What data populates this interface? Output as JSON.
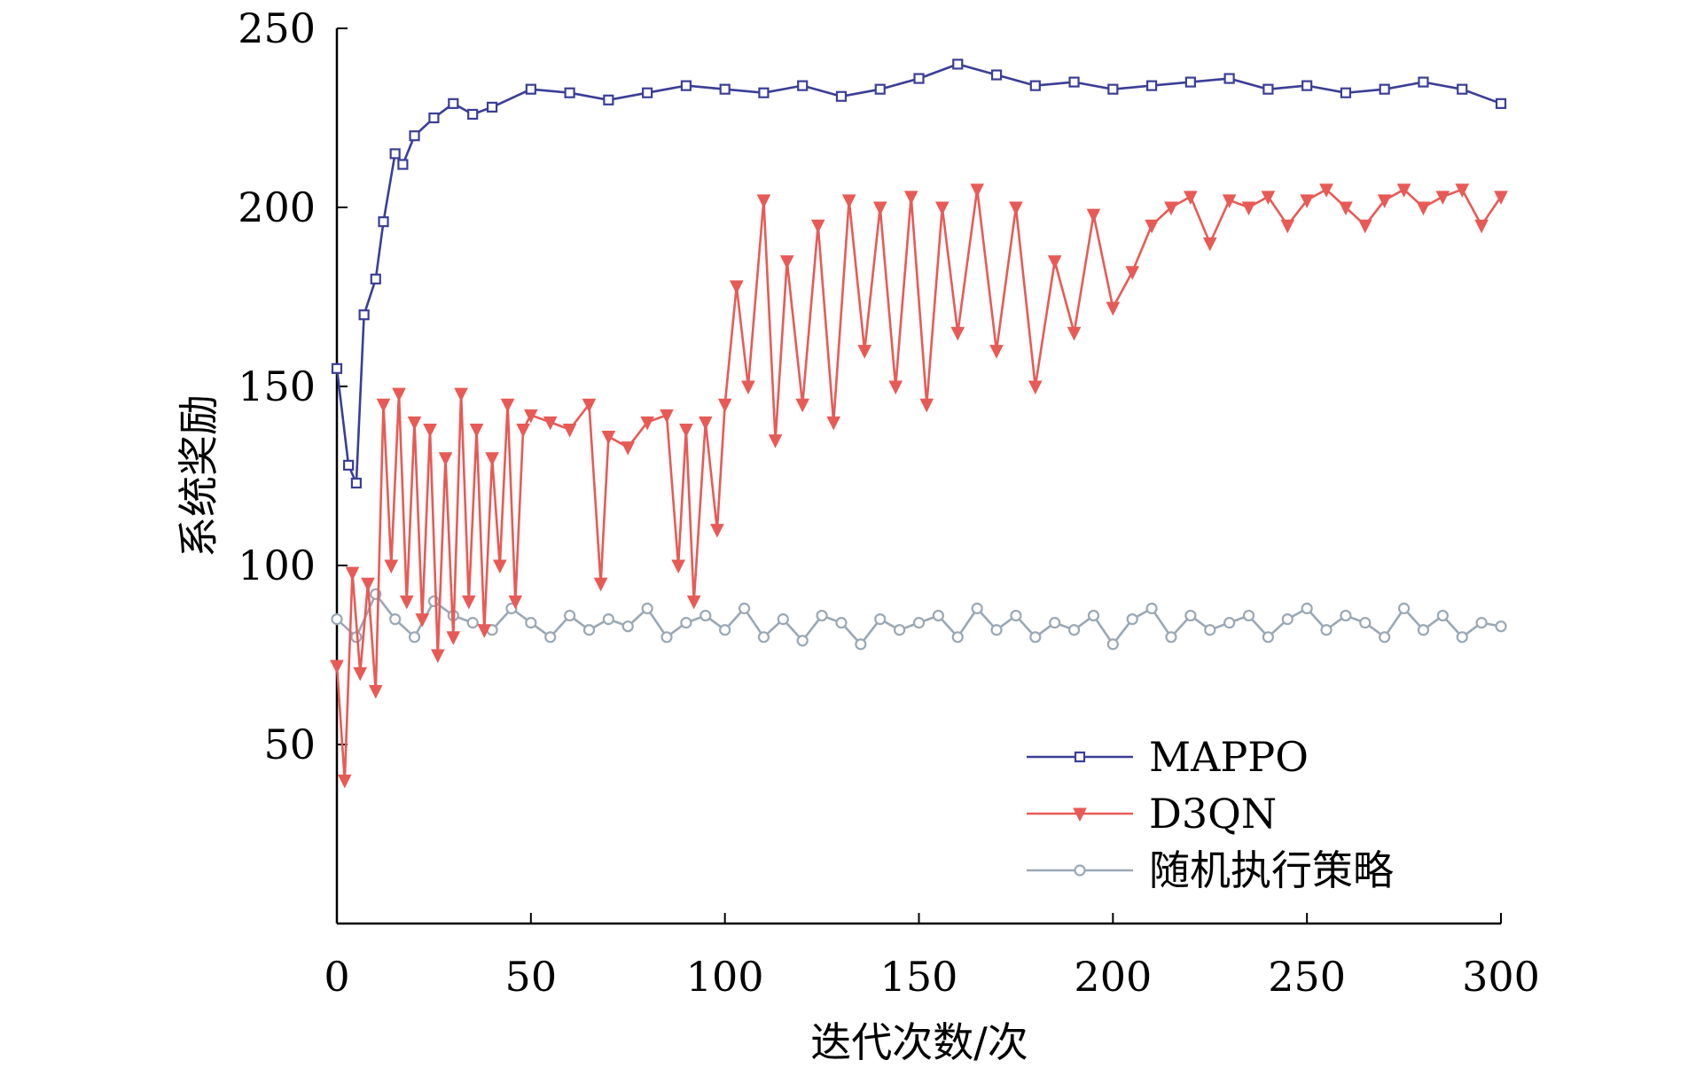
{
  "chart_data": {
    "type": "line",
    "xlabel": "迭代次数/次",
    "ylabel": "系统奖励",
    "xlim": [
      0,
      300
    ],
    "ylim": [
      0,
      250
    ],
    "xticks": [
      0,
      50,
      100,
      150,
      200,
      250,
      300
    ],
    "yticks": [
      50,
      100,
      150,
      200,
      250
    ],
    "grid": false,
    "legend_position": "bottom-right",
    "series": [
      {
        "name": "MAPPO",
        "color": "#3a3e96",
        "marker": "square",
        "x": [
          0,
          3,
          5,
          7,
          10,
          12,
          15,
          17,
          20,
          25,
          30,
          35,
          40,
          50,
          60,
          70,
          80,
          90,
          100,
          110,
          120,
          130,
          140,
          150,
          160,
          170,
          180,
          190,
          200,
          210,
          220,
          230,
          240,
          250,
          260,
          270,
          280,
          290,
          300
        ],
        "y": [
          155,
          128,
          123,
          170,
          180,
          196,
          215,
          212,
          220,
          225,
          229,
          226,
          228,
          233,
          232,
          230,
          232,
          234,
          233,
          232,
          234,
          231,
          233,
          236,
          240,
          237,
          234,
          235,
          233,
          234,
          235,
          236,
          233,
          234,
          232,
          233,
          235,
          233,
          229
        ]
      },
      {
        "name": "D3QN",
        "color": "#e85a56",
        "marker": "triangle-down",
        "x": [
          0,
          2,
          4,
          6,
          8,
          10,
          12,
          14,
          16,
          18,
          20,
          22,
          24,
          26,
          28,
          30,
          32,
          34,
          36,
          38,
          40,
          42,
          44,
          46,
          48,
          50,
          55,
          60,
          65,
          68,
          70,
          75,
          80,
          85,
          88,
          90,
          92,
          95,
          98,
          100,
          103,
          106,
          110,
          113,
          116,
          120,
          124,
          128,
          132,
          136,
          140,
          144,
          148,
          152,
          156,
          160,
          165,
          170,
          175,
          180,
          185,
          190,
          195,
          200,
          205,
          210,
          215,
          220,
          225,
          230,
          235,
          240,
          245,
          250,
          255,
          260,
          265,
          270,
          275,
          280,
          285,
          290,
          295,
          300
        ],
        "y": [
          72,
          40,
          98,
          70,
          95,
          65,
          145,
          100,
          148,
          90,
          140,
          85,
          138,
          75,
          130,
          80,
          148,
          90,
          138,
          82,
          130,
          100,
          145,
          90,
          138,
          142,
          140,
          138,
          145,
          95,
          136,
          133,
          140,
          142,
          100,
          138,
          90,
          140,
          110,
          145,
          178,
          150,
          202,
          135,
          185,
          145,
          195,
          140,
          202,
          160,
          200,
          150,
          203,
          145,
          200,
          165,
          205,
          160,
          200,
          150,
          185,
          165,
          198,
          172,
          182,
          195,
          200,
          203,
          190,
          202,
          200,
          203,
          195,
          202,
          205,
          200,
          195,
          202,
          205,
          200,
          203,
          205,
          195,
          203
        ]
      },
      {
        "name": "随机执行策略",
        "color": "#9aa8b6",
        "marker": "circle",
        "x": [
          0,
          5,
          10,
          15,
          20,
          25,
          30,
          35,
          40,
          45,
          50,
          55,
          60,
          65,
          70,
          75,
          80,
          85,
          90,
          95,
          100,
          105,
          110,
          115,
          120,
          125,
          130,
          135,
          140,
          145,
          150,
          155,
          160,
          165,
          170,
          175,
          180,
          185,
          190,
          195,
          200,
          205,
          210,
          215,
          220,
          225,
          230,
          235,
          240,
          245,
          250,
          255,
          260,
          265,
          270,
          275,
          280,
          285,
          290,
          295,
          300
        ],
        "y": [
          85,
          80,
          92,
          85,
          80,
          90,
          86,
          84,
          82,
          88,
          84,
          80,
          86,
          82,
          85,
          83,
          88,
          80,
          84,
          86,
          82,
          88,
          80,
          85,
          79,
          86,
          84,
          78,
          85,
          82,
          84,
          86,
          80,
          88,
          82,
          86,
          80,
          84,
          82,
          86,
          78,
          85,
          88,
          80,
          86,
          82,
          84,
          86,
          80,
          85,
          88,
          82,
          86,
          84,
          80,
          88,
          82,
          86,
          80,
          84,
          83
        ]
      }
    ]
  }
}
